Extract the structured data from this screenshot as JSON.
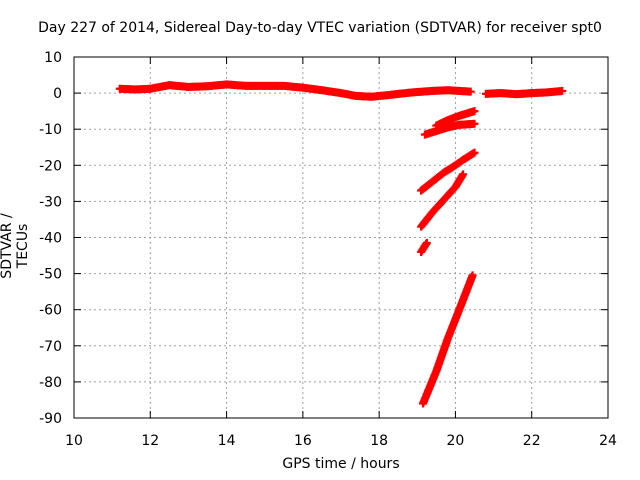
{
  "chart_data": {
    "type": "scatter",
    "title": "Day 227 of 2014, Sidereal Day-to-day VTEC variation (SDTVAR) for receiver spt0",
    "xlabel": "GPS time / hours",
    "ylabel": "SDTVAR / TECUs",
    "xlim": [
      10,
      24
    ],
    "ylim": [
      -90,
      10
    ],
    "xticks": [
      10,
      12,
      14,
      16,
      18,
      20,
      22,
      24
    ],
    "yticks": [
      10,
      0,
      -10,
      -20,
      -30,
      -40,
      -50,
      -60,
      -70,
      -80,
      -90
    ],
    "grid": true,
    "marker_color": "#ff0000",
    "marker": "plus",
    "series": [
      {
        "x": [
          11.2,
          11.6,
          12.0,
          12.5,
          13.0,
          13.5,
          14.0,
          14.5,
          15.0,
          15.5,
          16.0,
          16.5,
          17.0,
          17.4,
          17.8,
          18.2,
          18.6,
          19.0,
          19.4,
          19.8,
          20.1,
          20.4
        ],
        "y": [
          1.2,
          1.0,
          1.2,
          2.2,
          1.7,
          1.9,
          2.4,
          2.0,
          2.0,
          2.0,
          1.5,
          0.8,
          0.0,
          -0.8,
          -1.0,
          -0.6,
          -0.1,
          0.3,
          0.6,
          0.8,
          0.6,
          0.4
        ]
      },
      {
        "x": [
          20.8,
          21.2,
          21.6,
          22.0,
          22.4,
          22.8
        ],
        "y": [
          -0.2,
          0.0,
          -0.3,
          0.0,
          0.2,
          0.6
        ]
      },
      {
        "x": [
          19.5,
          19.8,
          20.1,
          20.5
        ],
        "y": [
          -9.0,
          -7.5,
          -6.3,
          -5.0
        ]
      },
      {
        "x": [
          19.2,
          19.5,
          19.8,
          20.1,
          20.5
        ],
        "y": [
          -11.5,
          -10.5,
          -9.5,
          -8.8,
          -8.5
        ]
      },
      {
        "x": [
          19.1,
          19.4,
          19.7,
          20.0,
          20.2,
          20.5
        ],
        "y": [
          -27.0,
          -24.5,
          -22.0,
          -20.0,
          -18.5,
          -16.5
        ]
      },
      {
        "x": [
          19.1,
          19.4,
          19.7,
          20.0,
          20.2
        ],
        "y": [
          -37.0,
          -33.0,
          -29.5,
          -26.0,
          -22.5
        ]
      },
      {
        "x": [
          19.1,
          19.25
        ],
        "y": [
          -44.0,
          -41.5
        ]
      },
      {
        "x": [
          19.15,
          19.5,
          19.8,
          20.1,
          20.45
        ],
        "y": [
          -86.0,
          -77.0,
          -68.0,
          -60.0,
          -50.5
        ]
      }
    ]
  }
}
